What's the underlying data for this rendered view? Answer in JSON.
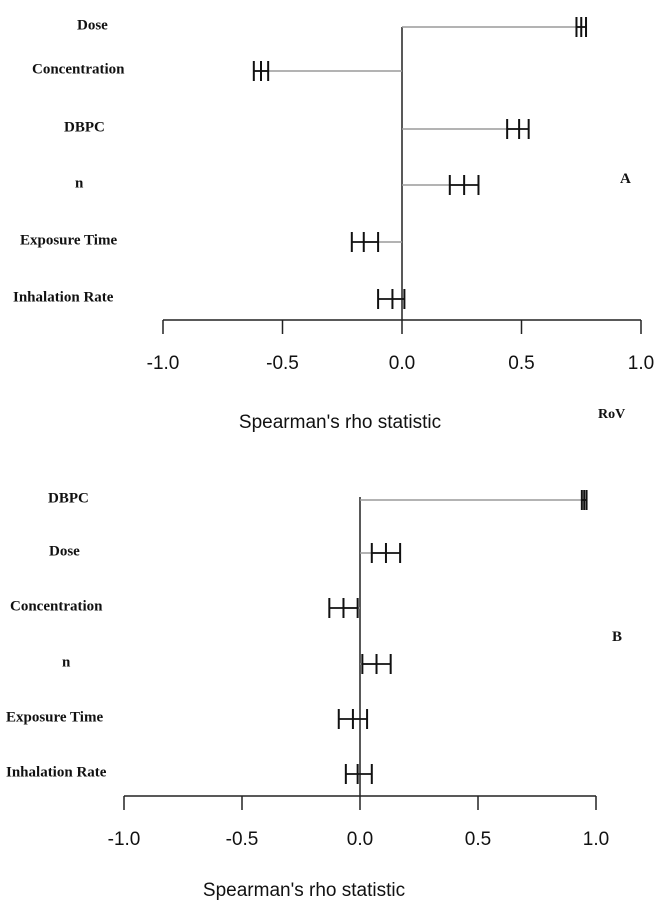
{
  "chart_data": [
    {
      "type": "bar",
      "panel": "A",
      "note": "RoV",
      "xlabel": "Spearman's rho statistic",
      "xlim": [
        -1.0,
        1.0
      ],
      "xticks": [
        "-1.0",
        "-0.5",
        "0.0",
        "0.5",
        "1.0"
      ],
      "categories": [
        "Dose",
        "Concentration",
        "DBPC",
        "n",
        "Exposure Time",
        "Inhalation Rate"
      ],
      "values": [
        0.75,
        -0.59,
        0.49,
        0.26,
        -0.16,
        -0.04
      ],
      "ci_low": [
        0.73,
        -0.62,
        0.44,
        0.2,
        -0.21,
        -0.1
      ],
      "ci_high": [
        0.77,
        -0.56,
        0.53,
        0.32,
        -0.1,
        0.01
      ]
    },
    {
      "type": "bar",
      "panel": "B",
      "xlabel": "Spearman's rho statistic",
      "xlim": [
        -1.0,
        1.0
      ],
      "xticks": [
        "-1.0",
        "-0.5",
        "0.0",
        "0.5",
        "1.0"
      ],
      "categories": [
        "DBPC",
        "Dose",
        "Concentration",
        "n",
        "Exposure Time",
        "Inhalation Rate"
      ],
      "values": [
        0.95,
        0.11,
        -0.07,
        0.07,
        -0.03,
        -0.01
      ],
      "ci_low": [
        0.94,
        0.05,
        -0.13,
        0.01,
        -0.09,
        -0.06
      ],
      "ci_high": [
        0.96,
        0.17,
        -0.01,
        0.13,
        0.03,
        0.05
      ]
    }
  ]
}
